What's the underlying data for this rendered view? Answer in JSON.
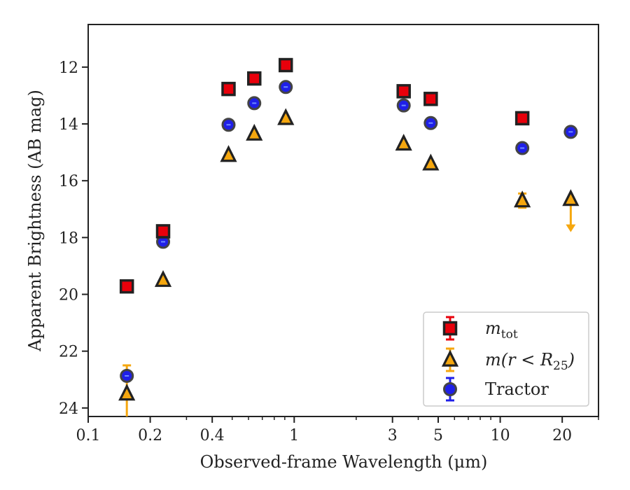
{
  "chart_data": {
    "type": "scatter",
    "title": "",
    "xlabel": "Observed-frame Wavelength (μm)",
    "ylabel": "Apparent Brightness (AB mag)",
    "xscale": "log",
    "xlim": [
      0.1,
      30
    ],
    "ylim": [
      24.3,
      10.5
    ],
    "y_inverted": true,
    "x_ticks": [
      {
        "value": 0.1,
        "label": "0.1"
      },
      {
        "value": 0.2,
        "label": "0.2"
      },
      {
        "value": 0.4,
        "label": "0.4"
      },
      {
        "value": 1,
        "label": "1"
      },
      {
        "value": 3,
        "label": "3"
      },
      {
        "value": 5,
        "label": "5"
      },
      {
        "value": 10,
        "label": "10"
      },
      {
        "value": 20,
        "label": "20"
      }
    ],
    "y_ticks": [
      {
        "value": 12,
        "label": "12"
      },
      {
        "value": 14,
        "label": "14"
      },
      {
        "value": 16,
        "label": "16"
      },
      {
        "value": 18,
        "label": "18"
      },
      {
        "value": 20,
        "label": "20"
      },
      {
        "value": 22,
        "label": "22"
      },
      {
        "value": 24,
        "label": "24"
      }
    ],
    "legend_position": "lower-right",
    "series": [
      {
        "name": "m_tot",
        "legend_main": "m",
        "legend_sub": "tot",
        "marker": "square",
        "color": "#e8000b",
        "edge": "#222222",
        "errcolor": "#e8000b",
        "points": [
          {
            "x": 0.154,
            "y": 19.72
          },
          {
            "x": 0.231,
            "y": 17.78
          },
          {
            "x": 0.48,
            "y": 12.77
          },
          {
            "x": 0.64,
            "y": 12.4
          },
          {
            "x": 0.91,
            "y": 11.93
          },
          {
            "x": 3.4,
            "y": 12.85
          },
          {
            "x": 4.6,
            "y": 13.12
          },
          {
            "x": 12.8,
            "y": 13.8
          }
        ]
      },
      {
        "name": "m(r < R_25)",
        "legend_main": "m(r < R",
        "legend_sub": "25",
        "legend_tail": ")",
        "marker": "triangle",
        "color": "#f5a70f",
        "edge": "#222222",
        "errcolor": "#f5a70f",
        "points": [
          {
            "x": 0.154,
            "y": 23.5,
            "yerr_low": 1.8,
            "yerr_high": 1.0
          },
          {
            "x": 0.231,
            "y": 19.5
          },
          {
            "x": 0.48,
            "y": 15.1
          },
          {
            "x": 0.64,
            "y": 14.35
          },
          {
            "x": 0.91,
            "y": 13.8
          },
          {
            "x": 3.4,
            "y": 14.7
          },
          {
            "x": 4.6,
            "y": 15.4
          },
          {
            "x": 12.8,
            "y": 16.7,
            "yerr_low": 0.25,
            "yerr_high": 0.25
          },
          {
            "x": 22.0,
            "y": 16.65,
            "upper_limit": true
          }
        ]
      },
      {
        "name": "Tractor",
        "legend_main": "Tractor",
        "marker": "circle",
        "color": "#1f1fe8",
        "edge": "#444444",
        "errcolor": "#1f1fe8",
        "points": [
          {
            "x": 0.154,
            "y": 22.87
          },
          {
            "x": 0.231,
            "y": 18.15
          },
          {
            "x": 0.48,
            "y": 14.03
          },
          {
            "x": 0.64,
            "y": 13.27
          },
          {
            "x": 0.91,
            "y": 12.7
          },
          {
            "x": 3.4,
            "y": 13.35
          },
          {
            "x": 4.6,
            "y": 13.97
          },
          {
            "x": 12.8,
            "y": 14.85
          },
          {
            "x": 22.0,
            "y": 14.28
          }
        ]
      }
    ]
  }
}
